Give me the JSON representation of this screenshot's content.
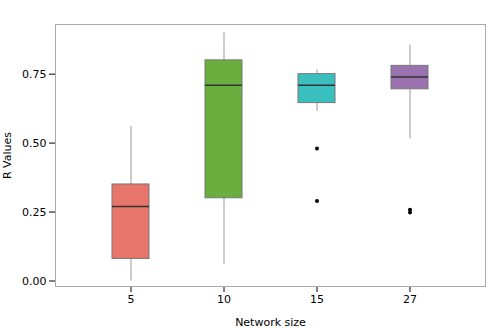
{
  "chart_data": {
    "type": "box",
    "categories": [
      "5",
      "10",
      "15",
      "27"
    ],
    "colors": [
      "#E8756A",
      "#6AAF3D",
      "#3ABFBF",
      "#9B72B0"
    ],
    "q1": [
      0.08,
      0.3,
      0.645,
      0.695
    ],
    "median": [
      0.27,
      0.71,
      0.71,
      0.74
    ],
    "q3": [
      0.35,
      0.8,
      0.75,
      0.78
    ],
    "whisker_low": [
      0.0,
      0.06,
      0.615,
      0.515
    ],
    "whisker_high": [
      0.56,
      0.9,
      0.765,
      0.855
    ],
    "outliers": [
      [],
      [],
      [
        0.48,
        0.29
      ],
      [
        0.258,
        0.248
      ]
    ],
    "xlabel": "Network size",
    "ylabel": "R Values",
    "ylim": [
      -0.02,
      0.93
    ],
    "yticks": [
      {
        "value": 0,
        "label": "0.00"
      },
      0.25,
      {
        "value": 0.5,
        "label": "0.50"
      },
      0.75
    ]
  }
}
